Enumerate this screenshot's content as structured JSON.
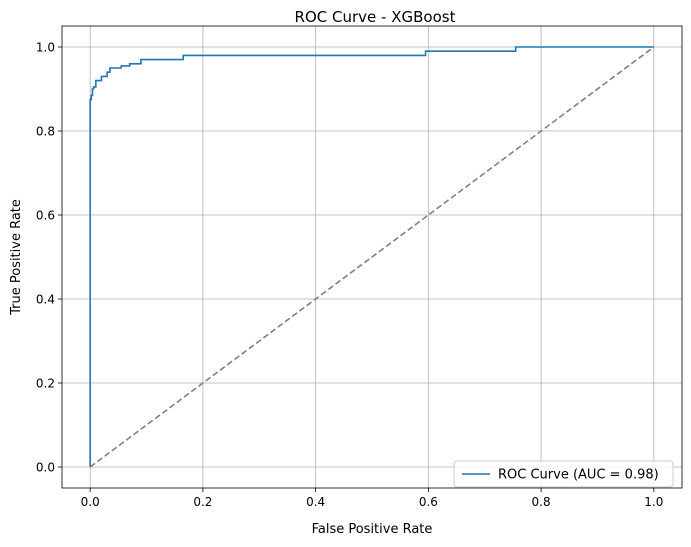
{
  "chart_data": {
    "type": "line",
    "title": "ROC Curve - XGBoost",
    "xlabel": "False Positive Rate",
    "ylabel": "True Positive Rate",
    "xlim": [
      -0.05,
      1.05
    ],
    "ylim": [
      -0.05,
      1.05
    ],
    "xticks": [
      "0.0",
      "0.2",
      "0.4",
      "0.6",
      "0.8",
      "1.0"
    ],
    "yticks": [
      "0.0",
      "0.2",
      "0.4",
      "0.6",
      "0.8",
      "1.0"
    ],
    "grid": true,
    "legend_position": "lower right",
    "series": [
      {
        "name": "ROC Curve (AUC = 0.98)",
        "color": "#1f77b4",
        "style": "solid",
        "x": [
          0.0,
          0.0,
          0.002,
          0.002,
          0.004,
          0.004,
          0.006,
          0.006,
          0.01,
          0.01,
          0.02,
          0.02,
          0.03,
          0.03,
          0.035,
          0.035,
          0.055,
          0.055,
          0.07,
          0.07,
          0.09,
          0.09,
          0.165,
          0.165,
          0.595,
          0.595,
          0.755,
          0.755,
          1.0
        ],
        "y": [
          0.0,
          0.875,
          0.875,
          0.885,
          0.885,
          0.9,
          0.9,
          0.905,
          0.905,
          0.92,
          0.92,
          0.93,
          0.93,
          0.94,
          0.94,
          0.95,
          0.95,
          0.955,
          0.955,
          0.96,
          0.96,
          0.97,
          0.97,
          0.98,
          0.98,
          0.99,
          0.99,
          1.0,
          1.0
        ]
      },
      {
        "name": "",
        "color": "#808080",
        "style": "dashed",
        "x": [
          0.0,
          1.0
        ],
        "y": [
          0.0,
          1.0
        ]
      }
    ]
  }
}
